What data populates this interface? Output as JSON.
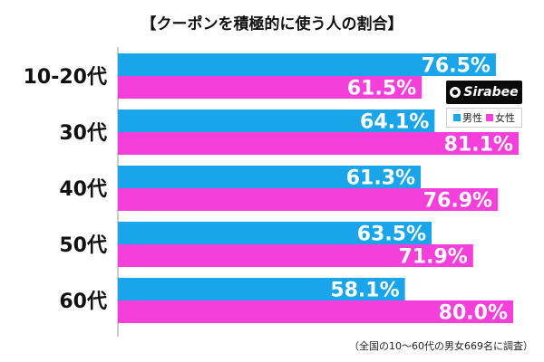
{
  "title": "【クーポンを積極的に使う人の割合】",
  "footnote": "（全国の10～60代の男女669名に調査）",
  "logo_text": "Sirabee",
  "colors": {
    "male": "#1aa5ea",
    "female": "#f43fda"
  },
  "chart_data": {
    "type": "bar",
    "orientation": "horizontal",
    "title": "【クーポンを積極的に使う人の割合】",
    "categories": [
      "10-20代",
      "30代",
      "40代",
      "50代",
      "60代"
    ],
    "series": [
      {
        "name": "男性",
        "values": [
          76.5,
          64.1,
          61.3,
          63.5,
          58.1
        ]
      },
      {
        "name": "女性",
        "values": [
          61.5,
          81.1,
          76.9,
          71.9,
          80.0
        ]
      }
    ],
    "value_labels": [
      [
        "76.5%",
        "64.1%",
        "61.3%",
        "63.5%",
        "58.1%"
      ],
      [
        "61.5%",
        "81.1%",
        "76.9%",
        "71.9%",
        "80.0%"
      ]
    ],
    "xlim": [
      0,
      100
    ],
    "grid": false,
    "legend_position": "top-right"
  }
}
